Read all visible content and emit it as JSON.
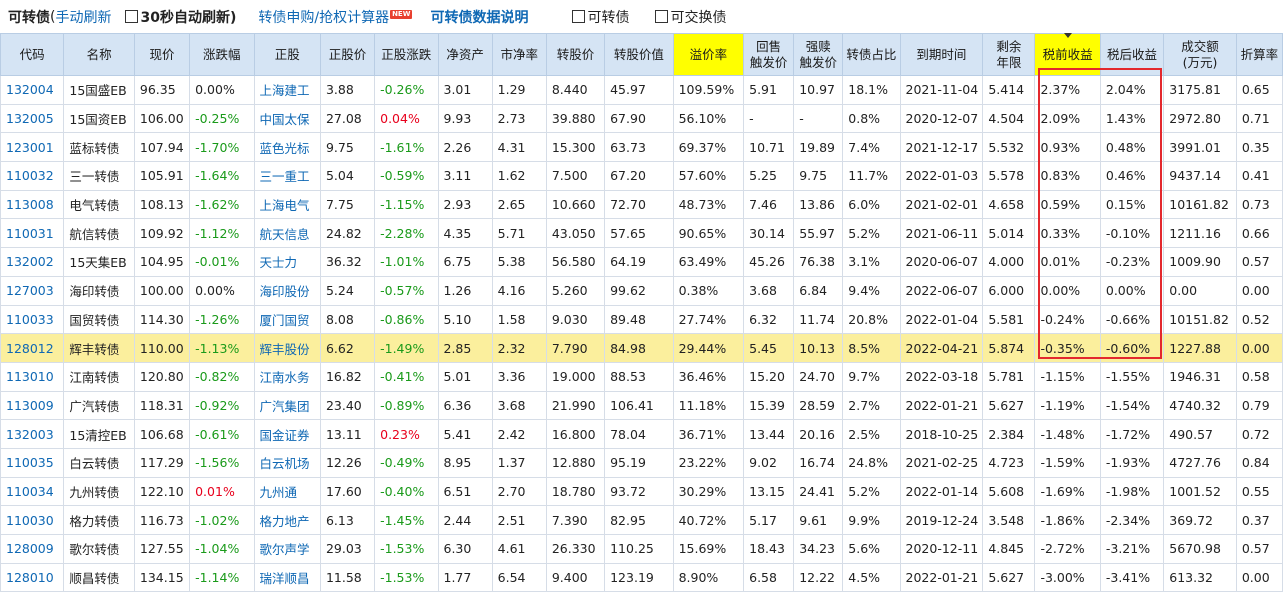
{
  "topbar": {
    "title": "可转债",
    "paren_open": "(",
    "manual_refresh": "手动刷新",
    "auto_refresh": "30秒自动刷新)",
    "calc_link": "转债申购/抢权计算器",
    "new_badge": "NEW",
    "data_desc": "可转债数据说明",
    "cb_convertible": "可转债",
    "cb_exchangeable": "可交换债"
  },
  "columns": [
    "代码",
    "名称",
    "现价",
    "涨跌幅",
    "正股",
    "正股价",
    "正股涨跌",
    "净资产",
    "市净率",
    "转股价",
    "转股价值",
    "溢价率",
    "回售\n触发价",
    "强赎\n触发价",
    "转债占比",
    "到期时间",
    "剩余\n年限",
    "税前收益",
    "税后收益",
    "成交额\n(万元)",
    "折算率"
  ],
  "rows": [
    [
      "132004",
      "15国盛EB",
      "96.35",
      "0.00%",
      "上海建工",
      "3.88",
      "-0.26%",
      "3.01",
      "1.29",
      "8.440",
      "45.97",
      "109.59%",
      "5.91",
      "10.97",
      "18.1%",
      "2021-11-04",
      "5.414",
      "2.37%",
      "2.04%",
      "3175.81",
      "0.65"
    ],
    [
      "132005",
      "15国资EB",
      "106.00",
      "-0.25%",
      "中国太保",
      "27.08",
      "0.04%",
      "9.93",
      "2.73",
      "39.880",
      "67.90",
      "56.10%",
      "-",
      "-",
      "0.8%",
      "2020-12-07",
      "4.504",
      "2.09%",
      "1.43%",
      "2972.80",
      "0.71"
    ],
    [
      "123001",
      "蓝标转债",
      "107.94",
      "-1.70%",
      "蓝色光标",
      "9.75",
      "-1.61%",
      "2.26",
      "4.31",
      "15.300",
      "63.73",
      "69.37%",
      "10.71",
      "19.89",
      "7.4%",
      "2021-12-17",
      "5.532",
      "0.93%",
      "0.48%",
      "3991.01",
      "0.35"
    ],
    [
      "110032",
      "三一转债",
      "105.91",
      "-1.64%",
      "三一重工",
      "5.04",
      "-0.59%",
      "3.11",
      "1.62",
      "7.500",
      "67.20",
      "57.60%",
      "5.25",
      "9.75",
      "11.7%",
      "2022-01-03",
      "5.578",
      "0.83%",
      "0.46%",
      "9437.14",
      "0.41"
    ],
    [
      "113008",
      "电气转债",
      "108.13",
      "-1.62%",
      "上海电气",
      "7.75",
      "-1.15%",
      "2.93",
      "2.65",
      "10.660",
      "72.70",
      "48.73%",
      "7.46",
      "13.86",
      "6.0%",
      "2021-02-01",
      "4.658",
      "0.59%",
      "0.15%",
      "10161.82",
      "0.73"
    ],
    [
      "110031",
      "航信转债",
      "109.92",
      "-1.12%",
      "航天信息",
      "24.82",
      "-2.28%",
      "4.35",
      "5.71",
      "43.050",
      "57.65",
      "90.65%",
      "30.14",
      "55.97",
      "5.2%",
      "2021-06-11",
      "5.014",
      "0.33%",
      "-0.10%",
      "1211.16",
      "0.66"
    ],
    [
      "132002",
      "15天集EB",
      "104.95",
      "-0.01%",
      "天士力",
      "36.32",
      "-1.01%",
      "6.75",
      "5.38",
      "56.580",
      "64.19",
      "63.49%",
      "45.26",
      "76.38",
      "3.1%",
      "2020-06-07",
      "4.000",
      "0.01%",
      "-0.23%",
      "1009.90",
      "0.57"
    ],
    [
      "127003",
      "海印转债",
      "100.00",
      "0.00%",
      "海印股份",
      "5.24",
      "-0.57%",
      "1.26",
      "4.16",
      "5.260",
      "99.62",
      "0.38%",
      "3.68",
      "6.84",
      "9.4%",
      "2022-06-07",
      "6.000",
      "0.00%",
      "0.00%",
      "0.00",
      "0.00"
    ],
    [
      "110033",
      "国贸转债",
      "114.30",
      "-1.26%",
      "厦门国贸",
      "8.08",
      "-0.86%",
      "5.10",
      "1.58",
      "9.030",
      "89.48",
      "27.74%",
      "6.32",
      "11.74",
      "20.8%",
      "2022-01-04",
      "5.581",
      "-0.24%",
      "-0.66%",
      "10151.82",
      "0.52"
    ],
    [
      "128012",
      "辉丰转债",
      "110.00",
      "-1.13%",
      "辉丰股份",
      "6.62",
      "-1.49%",
      "2.85",
      "2.32",
      "7.790",
      "84.98",
      "29.44%",
      "5.45",
      "10.13",
      "8.5%",
      "2022-04-21",
      "5.874",
      "-0.35%",
      "-0.60%",
      "1227.88",
      "0.00"
    ],
    [
      "113010",
      "江南转债",
      "120.80",
      "-0.82%",
      "江南水务",
      "16.82",
      "-0.41%",
      "5.01",
      "3.36",
      "19.000",
      "88.53",
      "36.46%",
      "15.20",
      "24.70",
      "9.7%",
      "2022-03-18",
      "5.781",
      "-1.15%",
      "-1.55%",
      "1946.31",
      "0.58"
    ],
    [
      "113009",
      "广汽转债",
      "118.31",
      "-0.92%",
      "广汽集团",
      "23.40",
      "-0.89%",
      "6.36",
      "3.68",
      "21.990",
      "106.41",
      "11.18%",
      "15.39",
      "28.59",
      "2.7%",
      "2022-01-21",
      "5.627",
      "-1.19%",
      "-1.54%",
      "4740.32",
      "0.79"
    ],
    [
      "132003",
      "15清控EB",
      "106.68",
      "-0.61%",
      "国金证券",
      "13.11",
      "0.23%",
      "5.41",
      "2.42",
      "16.800",
      "78.04",
      "36.71%",
      "13.44",
      "20.16",
      "2.5%",
      "2018-10-25",
      "2.384",
      "-1.48%",
      "-1.72%",
      "490.57",
      "0.72"
    ],
    [
      "110035",
      "白云转债",
      "117.29",
      "-1.56%",
      "白云机场",
      "12.26",
      "-0.49%",
      "8.95",
      "1.37",
      "12.880",
      "95.19",
      "23.22%",
      "9.02",
      "16.74",
      "24.8%",
      "2021-02-25",
      "4.723",
      "-1.59%",
      "-1.93%",
      "4727.76",
      "0.84"
    ],
    [
      "110034",
      "九州转债",
      "122.10",
      "0.01%",
      "九州通",
      "17.60",
      "-0.40%",
      "6.51",
      "2.70",
      "18.780",
      "93.72",
      "30.29%",
      "13.15",
      "24.41",
      "5.2%",
      "2022-01-14",
      "5.608",
      "-1.69%",
      "-1.98%",
      "1001.52",
      "0.55"
    ],
    [
      "110030",
      "格力转债",
      "116.73",
      "-1.02%",
      "格力地产",
      "6.13",
      "-1.45%",
      "2.44",
      "2.51",
      "7.390",
      "82.95",
      "40.72%",
      "5.17",
      "9.61",
      "9.9%",
      "2019-12-24",
      "3.548",
      "-1.86%",
      "-2.34%",
      "369.72",
      "0.37"
    ],
    [
      "128009",
      "歌尔转债",
      "127.55",
      "-1.04%",
      "歌尔声学",
      "29.03",
      "-1.53%",
      "6.30",
      "4.61",
      "26.330",
      "110.25",
      "15.69%",
      "18.43",
      "34.23",
      "5.6%",
      "2020-12-11",
      "4.845",
      "-2.72%",
      "-3.21%",
      "5670.98",
      "0.57"
    ],
    [
      "128010",
      "顺昌转债",
      "134.15",
      "-1.14%",
      "瑞洋顺昌",
      "11.58",
      "-1.53%",
      "1.77",
      "6.54",
      "9.400",
      "123.19",
      "8.90%",
      "6.58",
      "12.22",
      "4.5%",
      "2022-01-21",
      "5.627",
      "-3.00%",
      "-3.41%",
      "613.32",
      "0.00"
    ]
  ],
  "highlight_row_index": 9,
  "accent_colors": {
    "header_bg": "#d5e4f4",
    "highlight_yellow": "#ffff00",
    "row_highlight": "#fbef9d",
    "up_red": "#e8001c",
    "down_green": "#1a9a1a",
    "link_blue": "#0f68b4",
    "box_red": "#e3282d"
  }
}
